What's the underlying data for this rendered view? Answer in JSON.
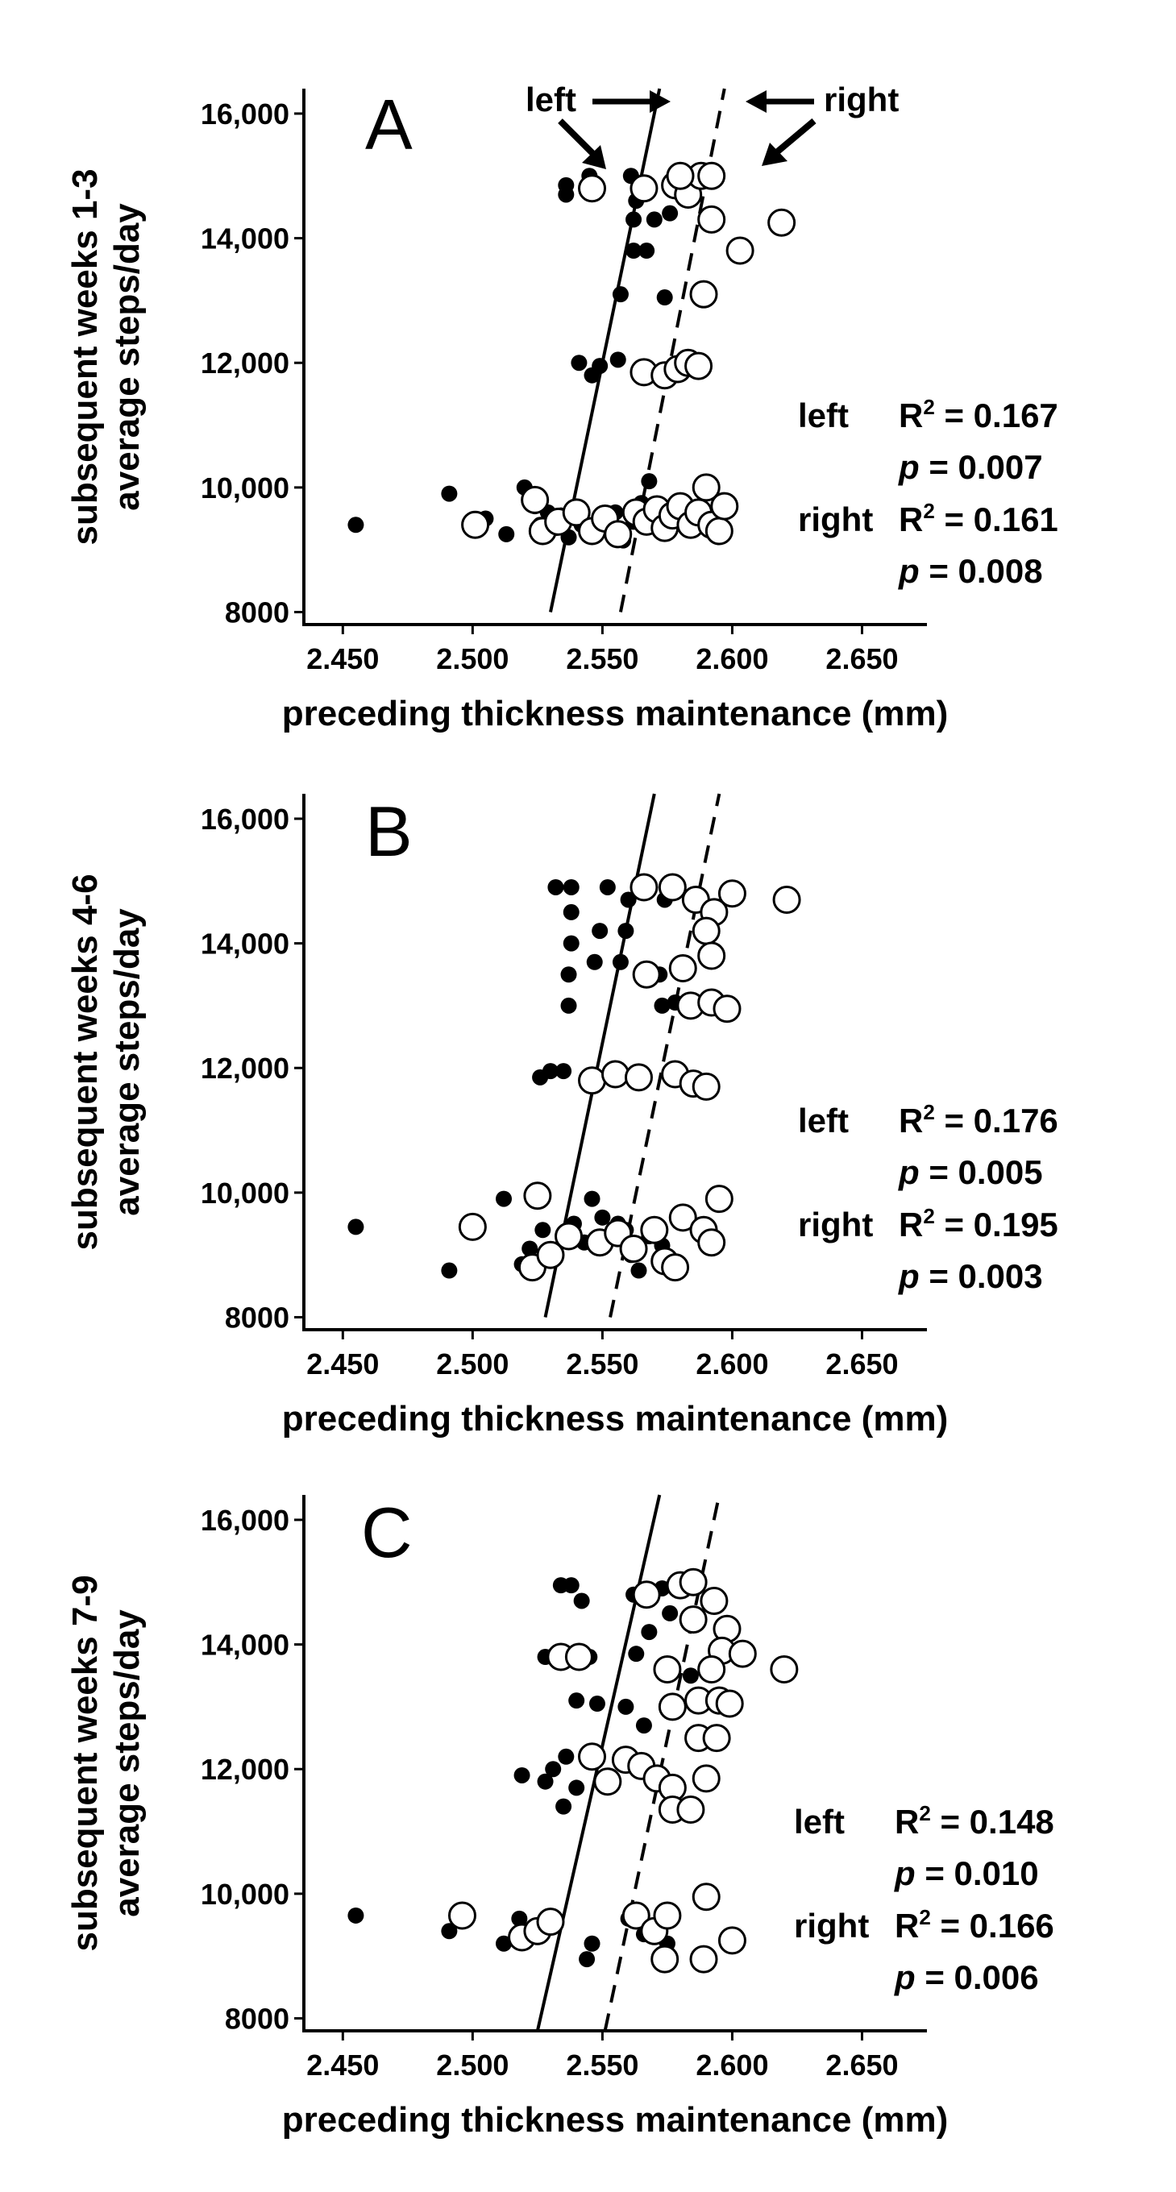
{
  "chart_data": [
    {
      "type": "scatter",
      "panel": "A",
      "ylabel_line1": "subsequent weeks 1-3",
      "ylabel_line2": "average steps/day",
      "xlabel": "preceding thickness maintenance (mm)",
      "xlim": [
        2.435,
        2.675
      ],
      "ylim": [
        7800,
        16400
      ],
      "xticks": [
        "2.450",
        "2.500",
        "2.550",
        "2.600",
        "2.650"
      ],
      "xtick_values": [
        2.45,
        2.5,
        2.55,
        2.6,
        2.65
      ],
      "yticks": [
        "8000",
        "10,000",
        "12,000",
        "14,000",
        "16,000"
      ],
      "ytick_values": [
        8000,
        10000,
        12000,
        14000,
        16000
      ],
      "callouts": {
        "left": "left",
        "right": "right"
      },
      "stats": [
        {
          "side": "left",
          "r2": "R² = 0.167",
          "p": "p = 0.007"
        },
        {
          "side": "right",
          "r2": "R² = 0.161",
          "p": "p = 0.008"
        }
      ],
      "series": [
        {
          "name": "left",
          "marker": "filled",
          "fit": [
            [
              2.53,
              8000
            ],
            [
              2.572,
              16400
            ]
          ],
          "points": [
            [
              2.455,
              9400
            ],
            [
              2.491,
              9900
            ],
            [
              2.505,
              9500
            ],
            [
              2.513,
              9250
            ],
            [
              2.52,
              10000
            ],
            [
              2.524,
              9700
            ],
            [
              2.526,
              9400
            ],
            [
              2.529,
              9600
            ],
            [
              2.532,
              9350
            ],
            [
              2.534,
              9550
            ],
            [
              2.537,
              9200
            ],
            [
              2.54,
              9600
            ],
            [
              2.542,
              9400
            ],
            [
              2.545,
              9300
            ],
            [
              2.549,
              9500
            ],
            [
              2.555,
              9600
            ],
            [
              2.558,
              9150
            ],
            [
              2.562,
              9450
            ],
            [
              2.565,
              9750
            ],
            [
              2.568,
              10100
            ],
            [
              2.536,
              14700
            ],
            [
              2.536,
              14850
            ],
            [
              2.545,
              15000
            ],
            [
              2.561,
              15000
            ],
            [
              2.563,
              14600
            ],
            [
              2.567,
              14800
            ],
            [
              2.562,
              14300
            ],
            [
              2.562,
              13800
            ],
            [
              2.567,
              13800
            ],
            [
              2.57,
              14300
            ],
            [
              2.576,
              14400
            ],
            [
              2.541,
              12000
            ],
            [
              2.546,
              11800
            ],
            [
              2.549,
              11950
            ],
            [
              2.556,
              12050
            ],
            [
              2.566,
              11900
            ],
            [
              2.557,
              13100
            ],
            [
              2.574,
              13050
            ]
          ]
        },
        {
          "name": "right",
          "marker": "open",
          "fit": [
            [
              2.557,
              8000
            ],
            [
              2.597,
              16400
            ]
          ],
          "points": [
            [
              2.501,
              9400
            ],
            [
              2.524,
              9800
            ],
            [
              2.527,
              9300
            ],
            [
              2.533,
              9450
            ],
            [
              2.54,
              9600
            ],
            [
              2.546,
              9300
            ],
            [
              2.551,
              9500
            ],
            [
              2.556,
              9250
            ],
            [
              2.563,
              9600
            ],
            [
              2.567,
              9450
            ],
            [
              2.571,
              9650
            ],
            [
              2.574,
              9350
            ],
            [
              2.577,
              9550
            ],
            [
              2.58,
              9700
            ],
            [
              2.584,
              9400
            ],
            [
              2.587,
              9600
            ],
            [
              2.59,
              10000
            ],
            [
              2.592,
              9400
            ],
            [
              2.595,
              9300
            ],
            [
              2.597,
              9700
            ],
            [
              2.546,
              14800
            ],
            [
              2.566,
              14800
            ],
            [
              2.578,
              14850
            ],
            [
              2.583,
              14700
            ],
            [
              2.588,
              15000
            ],
            [
              2.592,
              15000
            ],
            [
              2.58,
              15000
            ],
            [
              2.592,
              14300
            ],
            [
              2.603,
              13800
            ],
            [
              2.619,
              14250
            ],
            [
              2.589,
              13100
            ],
            [
              2.566,
              11850
            ],
            [
              2.574,
              11800
            ],
            [
              2.579,
              11900
            ],
            [
              2.583,
              12000
            ],
            [
              2.587,
              11950
            ]
          ]
        }
      ]
    },
    {
      "type": "scatter",
      "panel": "B",
      "ylabel_line1": "subsequent weeks 4-6",
      "ylabel_line2": "average steps/day",
      "xlabel": "preceding thickness maintenance (mm)",
      "xlim": [
        2.435,
        2.675
      ],
      "ylim": [
        7800,
        16400
      ],
      "xticks": [
        "2.450",
        "2.500",
        "2.550",
        "2.600",
        "2.650"
      ],
      "xtick_values": [
        2.45,
        2.5,
        2.55,
        2.6,
        2.65
      ],
      "yticks": [
        "8000",
        "10,000",
        "12,000",
        "14,000",
        "16,000"
      ],
      "ytick_values": [
        8000,
        10000,
        12000,
        14000,
        16000
      ],
      "stats": [
        {
          "side": "left",
          "r2": "R² = 0.176",
          "p": "p = 0.005"
        },
        {
          "side": "right",
          "r2": "R² = 0.195",
          "p": "p = 0.003"
        }
      ],
      "series": [
        {
          "name": "left",
          "marker": "filled",
          "fit": [
            [
              2.528,
              8000
            ],
            [
              2.57,
              16400
            ]
          ],
          "points": [
            [
              2.455,
              9450
            ],
            [
              2.491,
              8750
            ],
            [
              2.512,
              9900
            ],
            [
              2.519,
              8850
            ],
            [
              2.522,
              9100
            ],
            [
              2.527,
              9400
            ],
            [
              2.531,
              9000
            ],
            [
              2.535,
              9300
            ],
            [
              2.539,
              9500
            ],
            [
              2.543,
              9200
            ],
            [
              2.546,
              9900
            ],
            [
              2.55,
              9600
            ],
            [
              2.556,
              9500
            ],
            [
              2.559,
              9400
            ],
            [
              2.561,
              9000
            ],
            [
              2.564,
              8750
            ],
            [
              2.568,
              9300
            ],
            [
              2.573,
              9150
            ],
            [
              2.532,
              14900
            ],
            [
              2.538,
              14900
            ],
            [
              2.552,
              14900
            ],
            [
              2.56,
              14700
            ],
            [
              2.565,
              14950
            ],
            [
              2.574,
              14700
            ],
            [
              2.538,
              14500
            ],
            [
              2.538,
              14000
            ],
            [
              2.549,
              14200
            ],
            [
              2.559,
              14200
            ],
            [
              2.537,
              13500
            ],
            [
              2.547,
              13700
            ],
            [
              2.557,
              13700
            ],
            [
              2.572,
              13500
            ],
            [
              2.537,
              13000
            ],
            [
              2.573,
              13000
            ],
            [
              2.578,
              13050
            ],
            [
              2.526,
              11850
            ],
            [
              2.53,
              11950
            ],
            [
              2.535,
              11950
            ],
            [
              2.545,
              11800
            ]
          ]
        },
        {
          "name": "right",
          "marker": "open",
          "fit": [
            [
              2.553,
              8000
            ],
            [
              2.595,
              16400
            ]
          ],
          "points": [
            [
              2.5,
              9450
            ],
            [
              2.525,
              9950
            ],
            [
              2.523,
              8800
            ],
            [
              2.53,
              9000
            ],
            [
              2.537,
              9300
            ],
            [
              2.549,
              9200
            ],
            [
              2.556,
              9350
            ],
            [
              2.562,
              9100
            ],
            [
              2.57,
              9400
            ],
            [
              2.574,
              8900
            ],
            [
              2.578,
              8800
            ],
            [
              2.581,
              9600
            ],
            [
              2.589,
              9400
            ],
            [
              2.592,
              9200
            ],
            [
              2.595,
              9900
            ],
            [
              2.566,
              14900
            ],
            [
              2.577,
              14900
            ],
            [
              2.586,
              14700
            ],
            [
              2.593,
              14500
            ],
            [
              2.6,
              14800
            ],
            [
              2.621,
              14700
            ],
            [
              2.59,
              14200
            ],
            [
              2.592,
              13800
            ],
            [
              2.581,
              13600
            ],
            [
              2.567,
              13500
            ],
            [
              2.584,
              13000
            ],
            [
              2.592,
              13050
            ],
            [
              2.598,
              12950
            ],
            [
              2.546,
              11800
            ],
            [
              2.555,
              11900
            ],
            [
              2.564,
              11850
            ],
            [
              2.578,
              11900
            ],
            [
              2.585,
              11750
            ],
            [
              2.59,
              11700
            ]
          ]
        }
      ]
    },
    {
      "type": "scatter",
      "panel": "C",
      "ylabel_line1": "subsequent weeks 7-9",
      "ylabel_line2": "average steps/day",
      "xlabel": "preceding thickness maintenance (mm)",
      "xlim": [
        2.435,
        2.675
      ],
      "ylim": [
        7800,
        16400
      ],
      "xticks": [
        "2.450",
        "2.500",
        "2.550",
        "2.600",
        "2.650"
      ],
      "xtick_values": [
        2.45,
        2.5,
        2.55,
        2.6,
        2.65
      ],
      "yticks": [
        "8000",
        "10,000",
        "12,000",
        "14,000",
        "16,000"
      ],
      "ytick_values": [
        8000,
        10000,
        12000,
        14000,
        16000
      ],
      "stats": [
        {
          "side": "left",
          "r2": "R² = 0.148",
          "p": "p  = 0.010"
        },
        {
          "side": "right",
          "r2": "R² = 0.166",
          "p": "p = 0.006"
        }
      ],
      "series": [
        {
          "name": "left",
          "marker": "filled",
          "fit": [
            [
              2.525,
              7800
            ],
            [
              2.572,
              16400
            ]
          ],
          "points": [
            [
              2.455,
              9650
            ],
            [
              2.491,
              9400
            ],
            [
              2.512,
              9200
            ],
            [
              2.518,
              9600
            ],
            [
              2.525,
              9350
            ],
            [
              2.531,
              9600
            ],
            [
              2.544,
              8950
            ],
            [
              2.546,
              9200
            ],
            [
              2.56,
              9600
            ],
            [
              2.566,
              9350
            ],
            [
              2.575,
              9200
            ],
            [
              2.534,
              14950
            ],
            [
              2.538,
              14950
            ],
            [
              2.542,
              14700
            ],
            [
              2.562,
              14800
            ],
            [
              2.573,
              14900
            ],
            [
              2.576,
              14500
            ],
            [
              2.568,
              14200
            ],
            [
              2.528,
              13800
            ],
            [
              2.545,
              13800
            ],
            [
              2.563,
              13850
            ],
            [
              2.584,
              13500
            ],
            [
              2.54,
              13100
            ],
            [
              2.548,
              13050
            ],
            [
              2.559,
              13000
            ],
            [
              2.566,
              12700
            ],
            [
              2.536,
              12200
            ],
            [
              2.531,
              12000
            ],
            [
              2.528,
              11800
            ],
            [
              2.54,
              11700
            ],
            [
              2.535,
              11400
            ],
            [
              2.519,
              11900
            ],
            [
              2.573,
              11900
            ]
          ]
        },
        {
          "name": "right",
          "marker": "open",
          "fit": [
            [
              2.551,
              7800
            ],
            [
              2.595,
              16400
            ]
          ],
          "points": [
            [
              2.496,
              9650
            ],
            [
              2.519,
              9300
            ],
            [
              2.525,
              9400
            ],
            [
              2.53,
              9550
            ],
            [
              2.563,
              9650
            ],
            [
              2.57,
              9400
            ],
            [
              2.575,
              9650
            ],
            [
              2.59,
              9950
            ],
            [
              2.589,
              8950
            ],
            [
              2.574,
              8950
            ],
            [
              2.6,
              9250
            ],
            [
              2.567,
              14800
            ],
            [
              2.58,
              14950
            ],
            [
              2.585,
              15000
            ],
            [
              2.593,
              14700
            ],
            [
              2.585,
              14400
            ],
            [
              2.598,
              14250
            ],
            [
              2.596,
              13900
            ],
            [
              2.604,
              13850
            ],
            [
              2.62,
              13600
            ],
            [
              2.592,
              13600
            ],
            [
              2.534,
              13800
            ],
            [
              2.541,
              13800
            ],
            [
              2.575,
              13600
            ],
            [
              2.577,
              13000
            ],
            [
              2.587,
              13100
            ],
            [
              2.595,
              13100
            ],
            [
              2.599,
              13050
            ],
            [
              2.587,
              12500
            ],
            [
              2.594,
              12500
            ],
            [
              2.546,
              12200
            ],
            [
              2.559,
              12150
            ],
            [
              2.565,
              12050
            ],
            [
              2.552,
              11800
            ],
            [
              2.571,
              11850
            ],
            [
              2.577,
              11700
            ],
            [
              2.59,
              11850
            ],
            [
              2.577,
              11350
            ],
            [
              2.584,
              11350
            ]
          ]
        }
      ]
    }
  ]
}
